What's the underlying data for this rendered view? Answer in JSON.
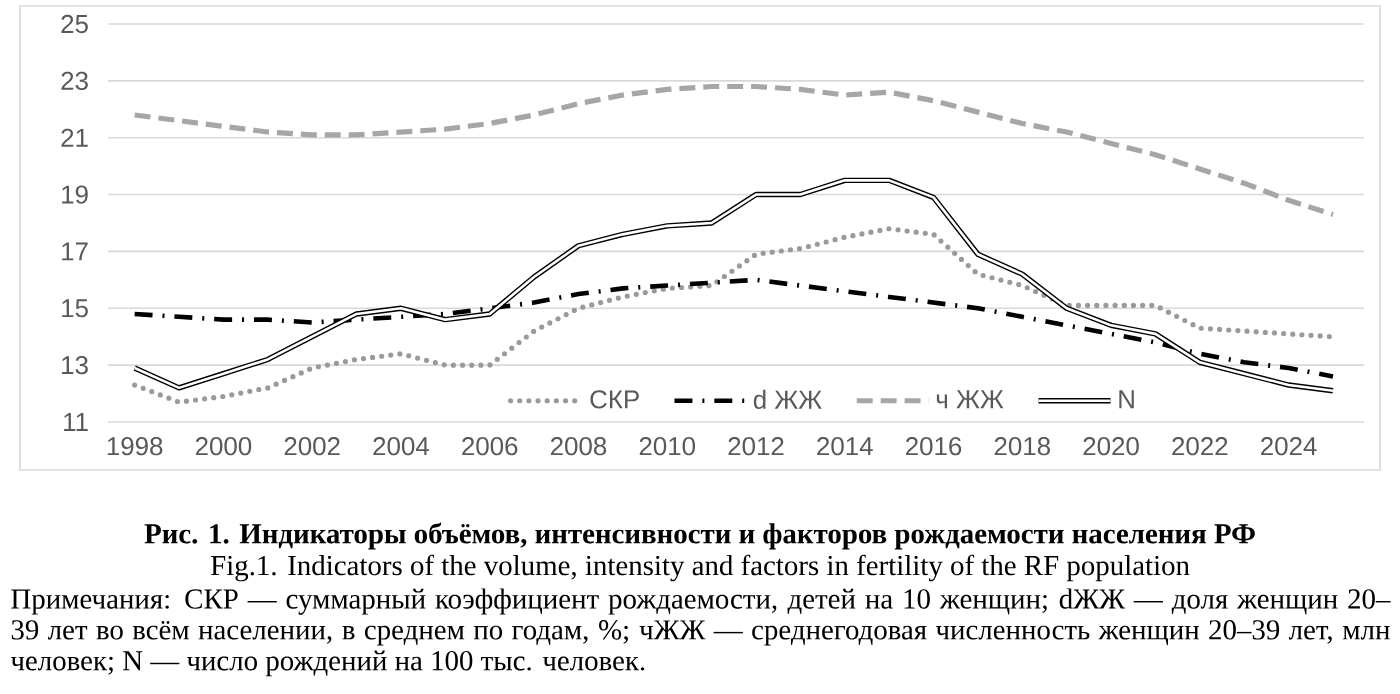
{
  "chart_data": {
    "type": "line",
    "title": "Рис. 1. Индикаторы объёмов, интенсивности и факторов рождаемости населения РФ",
    "subtitle": "Fig.1. Indicators of the volume, intensity and factors in fertility of the RF population",
    "annotations": [
      "Примечания: СКР — суммарный коэффициент рождаемости, детей на 10 женщин; dЖЖ — доля женщин 20–39 лет во всём населении, в среднем по годам, %; чЖЖ — среднегодовая численность женщин 20–39 лет, млн человек; N — число рождений на 100 тыс. человек."
    ],
    "x": [
      1998,
      1999,
      2000,
      2001,
      2002,
      2003,
      2004,
      2005,
      2006,
      2007,
      2008,
      2009,
      2010,
      2011,
      2012,
      2013,
      2014,
      2015,
      2016,
      2017,
      2018,
      2019,
      2020,
      2021,
      2022,
      2023,
      2024,
      2025
    ],
    "series": [
      {
        "name": "СКР",
        "color": "#9a9a9a",
        "line_style": "dotted",
        "values": [
          12.3,
          11.7,
          11.9,
          12.2,
          12.9,
          13.2,
          13.4,
          13.0,
          13.0,
          14.2,
          15.0,
          15.4,
          15.7,
          15.8,
          16.9,
          17.1,
          17.5,
          17.8,
          17.6,
          16.2,
          15.8,
          15.1,
          15.1,
          15.1,
          14.3,
          14.2,
          14.1,
          14.0
        ]
      },
      {
        "name": "d ЖЖ",
        "color": "#000000",
        "line_style": "dashdot",
        "values": [
          14.8,
          14.7,
          14.6,
          14.6,
          14.5,
          14.6,
          14.7,
          14.8,
          15.0,
          15.2,
          15.5,
          15.7,
          15.8,
          15.9,
          16.0,
          15.8,
          15.6,
          15.4,
          15.2,
          15.0,
          14.7,
          14.4,
          14.1,
          13.8,
          13.4,
          13.1,
          12.9,
          12.6
        ]
      },
      {
        "name": "ч ЖЖ",
        "color": "#a6a6a6",
        "line_style": "dashed",
        "values": [
          21.8,
          21.6,
          21.4,
          21.2,
          21.1,
          21.1,
          21.2,
          21.3,
          21.5,
          21.8,
          22.2,
          22.5,
          22.7,
          22.8,
          22.8,
          22.7,
          22.5,
          22.6,
          22.3,
          21.9,
          21.5,
          21.2,
          20.8,
          20.4,
          19.9,
          19.4,
          18.8,
          18.3
        ]
      },
      {
        "name": "N",
        "color": "#000000",
        "line_style": "solid",
        "values": [
          12.9,
          12.2,
          12.7,
          13.2,
          14.0,
          14.8,
          15.0,
          14.6,
          14.8,
          16.1,
          17.2,
          17.6,
          17.9,
          18.0,
          19.0,
          19.0,
          19.5,
          19.5,
          18.9,
          16.9,
          16.2,
          15.0,
          14.4,
          14.1,
          13.1,
          12.7,
          12.3,
          12.1
        ]
      }
    ],
    "xlim": [
      1997.4,
      2025.7
    ],
    "ylim": [
      11,
      25
    ],
    "xticks": [
      1998,
      2000,
      2002,
      2004,
      2006,
      2008,
      2010,
      2012,
      2014,
      2016,
      2018,
      2020,
      2022,
      2024
    ],
    "yticks": [
      11,
      13,
      15,
      17,
      19,
      21,
      23,
      25
    ],
    "grid": "y",
    "legend": "bottom"
  }
}
